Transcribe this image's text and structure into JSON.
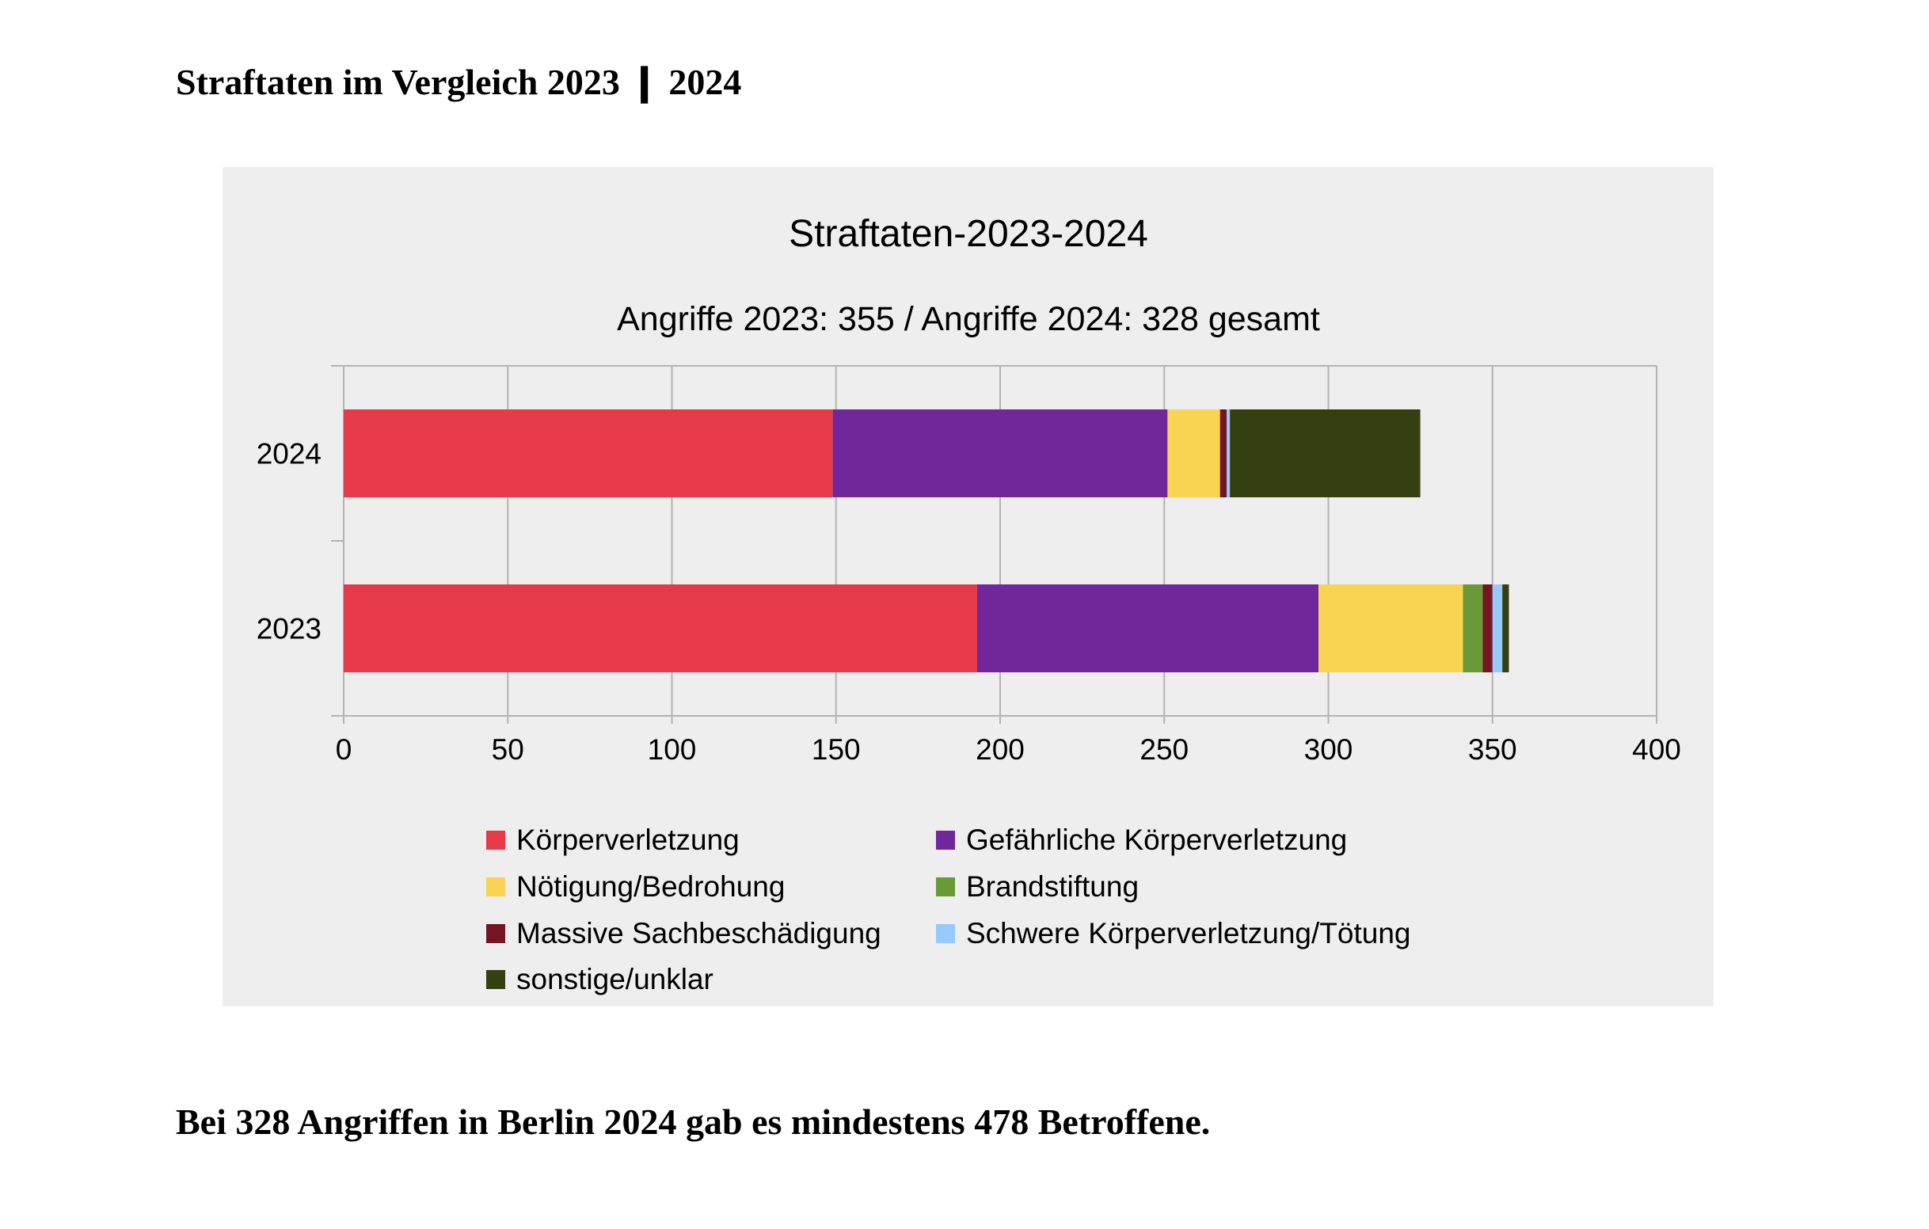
{
  "page": {
    "heading": "Straftaten im Vergleich 2023 ❙ 2024",
    "footer": "Bei 328 Angriffen in Berlin 2024 gab es mindestens 478 Betroffene."
  },
  "chart_data": {
    "type": "bar",
    "orientation": "horizontal",
    "stacked": true,
    "title": "Straftaten-2023-2024",
    "subtitle": "Angriffe 2023: 355 / Angriffe 2024: 328 gesamt",
    "categories": [
      "2024",
      "2023"
    ],
    "xlim": [
      0,
      400
    ],
    "xticks": [
      0,
      50,
      100,
      150,
      200,
      250,
      300,
      350,
      400
    ],
    "grid": true,
    "legend_position": "bottom",
    "series": [
      {
        "name": "Körperverletzung",
        "color": "#e8394b",
        "values": [
          149,
          193
        ]
      },
      {
        "name": "Gefährliche Körperverletzung",
        "color": "#70279c",
        "values": [
          102,
          104
        ]
      },
      {
        "name": "Nötigung/Bedrohung",
        "color": "#f8d452",
        "values": [
          16,
          44
        ]
      },
      {
        "name": "Brandstiftung",
        "color": "#6a9a37",
        "values": [
          0,
          6
        ]
      },
      {
        "name": "Massive Sachbeschädigung",
        "color": "#751425",
        "values": [
          2,
          3
        ]
      },
      {
        "name": "Schwere Körperverletzung/Tötung",
        "color": "#97c9fc",
        "values": [
          1,
          3
        ]
      },
      {
        "name": "sonstige/unklar",
        "color": "#344011",
        "values": [
          58,
          2
        ]
      }
    ]
  }
}
